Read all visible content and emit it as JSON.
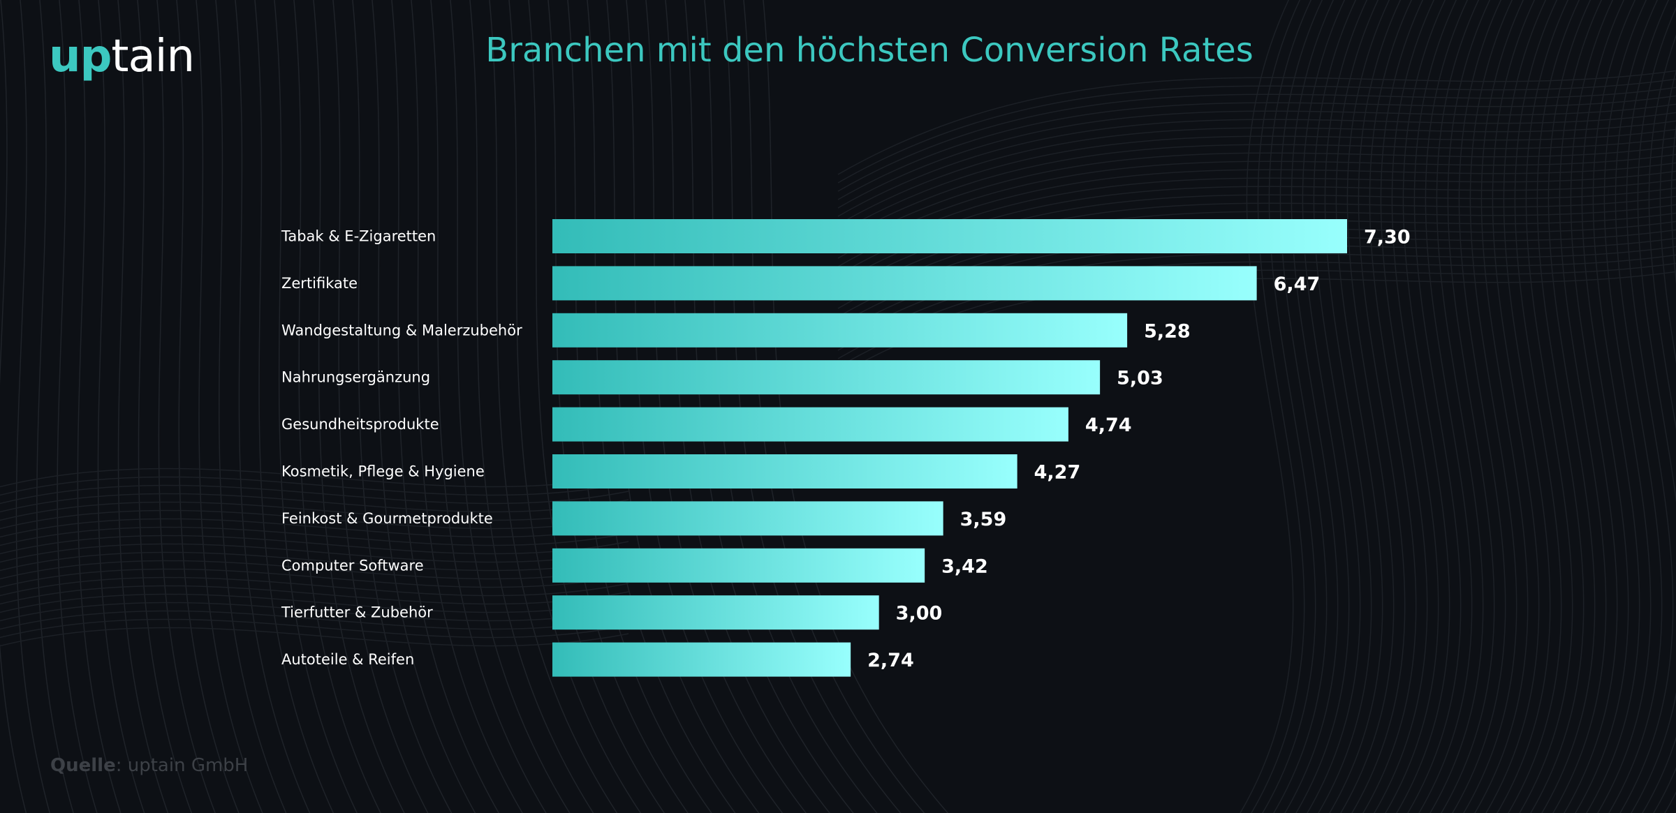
{
  "logo": {
    "part1": "up",
    "part2": "tain"
  },
  "chart_data": {
    "type": "bar",
    "orientation": "horizontal",
    "title": "Branchen mit den höchsten Conversion Rates",
    "xlabel": "",
    "ylabel": "",
    "xlim": [
      0,
      7.3
    ],
    "grid": false,
    "categories": [
      "Tabak & E-Zigaretten",
      "Zertifikate",
      "Wandgestaltung & Malerzubehör",
      "Nahrungsergänzung",
      "Gesundheitsprodukte",
      "Kosmetik, Pflege & Hygiene",
      "Feinkost & Gourmetprodukte",
      "Computer Software",
      "Tierfutter & Zubehör",
      "Autoteile & Reifen"
    ],
    "values": [
      7.3,
      6.47,
      5.28,
      5.03,
      4.74,
      4.27,
      3.59,
      3.42,
      3.0,
      2.74
    ],
    "value_labels": [
      "7,30",
      "6,47",
      "5,28",
      "5,03",
      "4,74",
      "4,27",
      "3,59",
      "3,42",
      "3,00",
      "2,74"
    ],
    "colors": {
      "bar_start": "#33bcb8",
      "bar_end": "#98fffd",
      "title": "#3cc8c0",
      "background": "#0d1015"
    }
  },
  "source": {
    "label": "Quelle",
    "text": ": uptain GmbH"
  }
}
